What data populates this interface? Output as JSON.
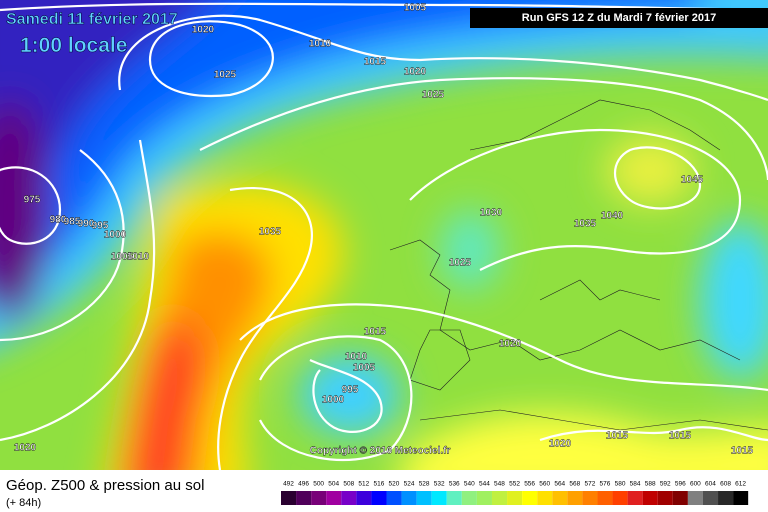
{
  "header": {
    "date": "Samedi 11 février 2017",
    "time": "1:00 locale",
    "run": "Run GFS 12 Z du Mardi 7 février 2017"
  },
  "map": {
    "isobar_labels": [
      "1005",
      "1020",
      "1010",
      "1025",
      "1015",
      "1020",
      "1025",
      "975",
      "980",
      "985",
      "990",
      "995",
      "1000",
      "1005",
      "1010",
      "1035",
      "1030",
      "1035",
      "1040",
      "1045",
      "1025",
      "1015",
      "1010",
      "1005",
      "995",
      "1000",
      "1020",
      "1020",
      "1020",
      "1015",
      "1015",
      "1015"
    ],
    "copyright": "Copyright © 2016 Meteociel.fr"
  },
  "footer": {
    "title": "Géop. Z500 & pression au sol",
    "lead": "(+ 84h)"
  },
  "legend": {
    "values": [
      492,
      496,
      500,
      504,
      508,
      512,
      516,
      520,
      524,
      528,
      532,
      536,
      540,
      544,
      548,
      552,
      556,
      560,
      564,
      568,
      572,
      576,
      580,
      584,
      588,
      592,
      596,
      600,
      604,
      608,
      612
    ],
    "colors": [
      "#2a0030",
      "#50005a",
      "#780078",
      "#a000a0",
      "#7800c8",
      "#3c00dc",
      "#0000ff",
      "#0050ff",
      "#0090ff",
      "#00c0ff",
      "#00e8ff",
      "#60f0c0",
      "#90f080",
      "#a0f060",
      "#c0f040",
      "#e0f020",
      "#ffff00",
      "#ffe000",
      "#ffc000",
      "#ffa000",
      "#ff8000",
      "#ff6000",
      "#ff4000",
      "#e02020",
      "#c00000",
      "#a00000",
      "#800000",
      "#808080",
      "#505050",
      "#282828",
      "#000000"
    ]
  }
}
